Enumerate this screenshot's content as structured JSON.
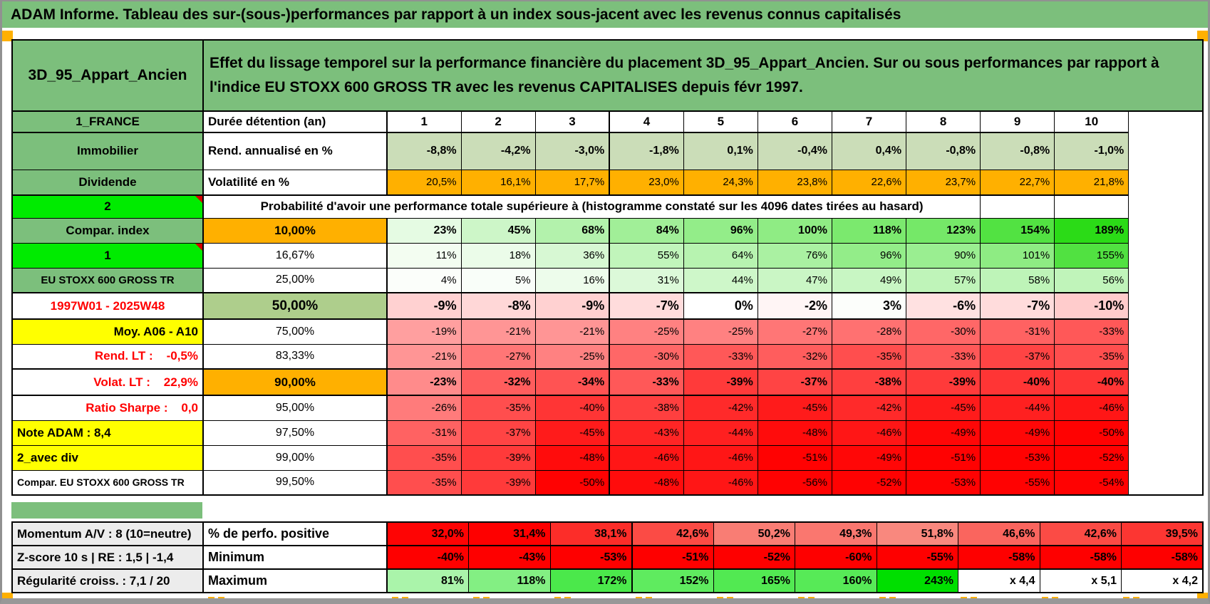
{
  "title_bar": {
    "text": "ADAM Informe. Tableau des sur-(sous-)performances par rapport à un index sous-jacent avec les revenus connus capitalisés"
  },
  "header": {
    "portfolio": "3D_95_Appart_Ancien",
    "description": "Effet du lissage temporel sur la performance financière du placement 3D_95_Appart_Ancien. Sur ou sous performances par rapport à l'indice EU STOXX 600 GROSS TR avec les revenus CAPITALISES depuis févr 1997."
  },
  "columns": [
    "1",
    "2",
    "3",
    "4",
    "5",
    "6",
    "7",
    "8",
    "9",
    "10"
  ],
  "main": {
    "rows": [
      {
        "left": {
          "text": "1_FRANCE",
          "cls": "lg"
        },
        "mid": {
          "text": "Durée détention (an)",
          "cls": "bl"
        },
        "cells": [
          "1",
          "2",
          "3",
          "4",
          "5",
          "6",
          "7",
          "8",
          "9",
          "10"
        ],
        "cells_cls": "colh",
        "fill": "none",
        "thick_bottom": true
      },
      {
        "left": {
          "text": "Immobilier",
          "cls": "lg"
        },
        "mid": {
          "text": "Rend. annualisé en %",
          "cls": "bl"
        },
        "cells": [
          "-8,8%",
          "-4,2%",
          "-3,0%",
          "-1,8%",
          "0,1%",
          "-0,4%",
          "0,4%",
          "-0,8%",
          "-0,8%",
          "-1,0%"
        ],
        "cells_cls": "b",
        "fill": "flatgreen"
      },
      {
        "left": {
          "text": "Dividende",
          "cls": "lg"
        },
        "mid": {
          "text": "Volatilité en %",
          "cls": "bl"
        },
        "cells": [
          "20,5%",
          "16,1%",
          "17,7%",
          "23,0%",
          "24,3%",
          "23,8%",
          "22,6%",
          "23,7%",
          "22,7%",
          "21,8%"
        ],
        "cells_cls": "",
        "fill": "flatorange",
        "thick_bottom": true
      },
      {
        "left": {
          "text": "2",
          "cls": "lime",
          "tri": true
        },
        "span_text": "Probabilité d'avoir une performance totale supérieure à (histogramme constaté sur les 4096 dates tirées au hasard)"
      },
      {
        "left": {
          "text": "Compar. index",
          "cls": "lg"
        },
        "mid": {
          "text": "10,00%",
          "cls": "oc"
        },
        "cells": [
          "23%",
          "45%",
          "68%",
          "84%",
          "96%",
          "100%",
          "118%",
          "123%",
          "154%",
          "189%"
        ],
        "cells_cls": "b",
        "fill": "scale"
      },
      {
        "left": {
          "text": "1",
          "cls": "lime",
          "tri": true
        },
        "mid": {
          "text": "16,67%",
          "cls": ""
        },
        "cells": [
          "11%",
          "18%",
          "36%",
          "55%",
          "64%",
          "76%",
          "96%",
          "90%",
          "101%",
          "155%"
        ],
        "cells_cls": "",
        "fill": "scale"
      },
      {
        "left": {
          "text": "EU STOXX 600 GROSS TR",
          "cls": "lg sm"
        },
        "mid": {
          "text": "25,00%",
          "cls": ""
        },
        "cells": [
          "4%",
          "5%",
          "16%",
          "31%",
          "44%",
          "47%",
          "49%",
          "57%",
          "58%",
          "56%"
        ],
        "cells_cls": "",
        "fill": "scale"
      },
      {
        "left": {
          "text": "1997W01 - 2025W48",
          "cls": "rc"
        },
        "mid": {
          "text": "50,00%",
          "cls": "sc"
        },
        "cells": [
          "-9%",
          "-8%",
          "-9%",
          "-7%",
          "0%",
          "-2%",
          "3%",
          "-6%",
          "-7%",
          "-10%"
        ],
        "cells_cls": "big",
        "fill": "scale",
        "thick_top": true,
        "thick_bottom": true
      },
      {
        "left": {
          "text": "Moy. A06 - A10",
          "cls": "yr"
        },
        "mid": {
          "text": "75,00%",
          "cls": ""
        },
        "cells": [
          "-19%",
          "-21%",
          "-21%",
          "-25%",
          "-25%",
          "-27%",
          "-28%",
          "-30%",
          "-31%",
          "-33%"
        ],
        "cells_cls": "",
        "fill": "scale"
      },
      {
        "left": {
          "text": "Rend. LT :    -0,5%",
          "cls": "rr"
        },
        "mid": {
          "text": "83,33%",
          "cls": ""
        },
        "cells": [
          "-21%",
          "-27%",
          "-25%",
          "-30%",
          "-33%",
          "-32%",
          "-35%",
          "-33%",
          "-37%",
          "-35%"
        ],
        "cells_cls": "",
        "fill": "scale"
      },
      {
        "left": {
          "text": "Volat. LT :    22,9%",
          "cls": "rr"
        },
        "mid": {
          "text": "90,00%",
          "cls": "oc"
        },
        "cells": [
          "-23%",
          "-32%",
          "-34%",
          "-33%",
          "-39%",
          "-37%",
          "-38%",
          "-39%",
          "-40%",
          "-40%"
        ],
        "cells_cls": "b",
        "fill": "scale",
        "thick_top": true,
        "thick_bottom": true
      },
      {
        "left": {
          "text": "Ratio Sharpe :    0,0",
          "cls": "rr"
        },
        "mid": {
          "text": "95,00%",
          "cls": ""
        },
        "cells": [
          "-26%",
          "-35%",
          "-40%",
          "-38%",
          "-42%",
          "-45%",
          "-42%",
          "-45%",
          "-44%",
          "-46%"
        ],
        "cells_cls": "",
        "fill": "scale"
      },
      {
        "left": {
          "text": "Note ADAM : 8,4",
          "cls": "yl"
        },
        "mid": {
          "text": "97,50%",
          "cls": ""
        },
        "cells": [
          "-31%",
          "-37%",
          "-45%",
          "-43%",
          "-44%",
          "-48%",
          "-46%",
          "-49%",
          "-49%",
          "-50%"
        ],
        "cells_cls": "",
        "fill": "scale"
      },
      {
        "left": {
          "text": "2_avec div",
          "cls": "yl"
        },
        "mid": {
          "text": "99,00%",
          "cls": ""
        },
        "cells": [
          "-35%",
          "-39%",
          "-48%",
          "-46%",
          "-46%",
          "-51%",
          "-49%",
          "-51%",
          "-53%",
          "-52%"
        ],
        "cells_cls": "",
        "fill": "scale"
      },
      {
        "left": {
          "text": "Compar. EU STOXX 600 GROSS TR",
          "cls": "wl"
        },
        "mid": {
          "text": "99,50%",
          "cls": ""
        },
        "cells": [
          "-35%",
          "-39%",
          "-50%",
          "-48%",
          "-46%",
          "-56%",
          "-52%",
          "-53%",
          "-55%",
          "-54%"
        ],
        "cells_cls": "",
        "fill": "scale"
      }
    ]
  },
  "bottom": {
    "rows": [
      {
        "left": {
          "text": "Momentum A/V : 8 (10=neutre)"
        },
        "mid": {
          "text": "% de perfo. positive"
        },
        "cells": [
          "32,0%",
          "31,4%",
          "38,1%",
          "42,6%",
          "50,2%",
          "49,3%",
          "51,8%",
          "46,6%",
          "42,6%",
          "39,5%"
        ],
        "fill": "posred"
      },
      {
        "left": {
          "text": "Z-score 10 s | RE : 1,5 | -1,4"
        },
        "mid": {
          "text": "Minimum"
        },
        "cells": [
          "-40%",
          "-43%",
          "-53%",
          "-51%",
          "-52%",
          "-60%",
          "-55%",
          "-58%",
          "-58%",
          "-58%"
        ],
        "fill": "flatred"
      },
      {
        "left": {
          "text": "Régularité croiss. : 7,1 / 20"
        },
        "mid": {
          "text": "Maximum"
        },
        "cells": [
          "81%",
          "118%",
          "172%",
          "152%",
          "165%",
          "160%",
          "243%",
          "x 4,4",
          "x 5,1",
          "x 4,2"
        ],
        "fill": "maxgreen"
      }
    ]
  },
  "colors": {
    "white": "#FFFFFF",
    "label_green": "#7CBF7C",
    "lime": "#00EB00",
    "orange": "#FFB000",
    "yellow": "#FFFF00",
    "sage": "#AECE8C",
    "flat_green": "#CBDDB8",
    "gray_label": "#ECECEC",
    "red_text": "#FF0000",
    "triangle_red": "#D40000",
    "green_end": "#2BDB17",
    "green_cap": 189,
    "red_end": "#FF0202",
    "red_cap": 50,
    "pos_red_dark": "#FE0000",
    "pos_red_light": "#F9887E",
    "pos_min": 31.4,
    "pos_max": 51.8,
    "max_green_end": "#00DF00",
    "max_cap": 243
  }
}
